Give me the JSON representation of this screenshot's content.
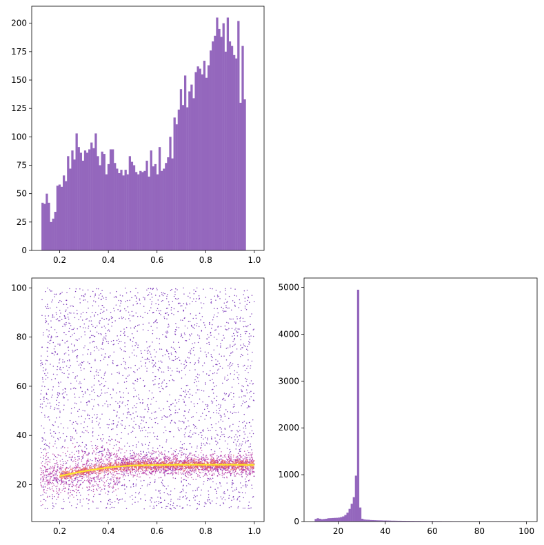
{
  "chart_data": [
    {
      "type": "bar",
      "panel": "top-left",
      "xlim": [
        0.085,
        1.04
      ],
      "ylim": [
        0,
        215
      ],
      "xticks": [
        0.2,
        0.4,
        0.6,
        0.8,
        1.0
      ],
      "xtick_labels": [
        "0.2",
        "0.4",
        "0.6",
        "0.8",
        "1.0"
      ],
      "yticks": [
        0,
        25,
        50,
        75,
        100,
        125,
        150,
        175,
        200
      ],
      "ytick_labels": [
        "0",
        "25",
        "50",
        "75",
        "100",
        "125",
        "150",
        "175",
        "200"
      ],
      "bin_start": 0.125,
      "bin_width": 0.00875,
      "values": [
        42,
        41,
        50,
        42,
        25,
        28,
        34,
        57,
        58,
        56,
        66,
        61,
        83,
        72,
        88,
        80,
        103,
        91,
        86,
        79,
        88,
        86,
        89,
        95,
        90,
        103,
        83,
        75,
        87,
        85,
        67,
        76,
        89,
        89,
        77,
        72,
        68,
        71,
        66,
        71,
        67,
        83,
        78,
        75,
        69,
        67,
        70,
        69,
        70,
        79,
        65,
        88,
        74,
        76,
        67,
        91,
        70,
        72,
        77,
        82,
        100,
        81,
        117,
        111,
        124,
        142,
        128,
        154,
        126,
        140,
        146,
        134,
        157,
        162,
        160,
        155,
        167,
        152,
        163,
        176,
        184,
        189,
        205,
        195,
        188,
        200,
        175,
        205,
        184,
        180,
        172,
        169,
        202,
        130,
        180,
        133
      ]
    },
    {
      "type": "scatter",
      "panel": "bottom-left",
      "xlim": [
        0.085,
        1.04
      ],
      "ylim": [
        5,
        104
      ],
      "xticks": [
        0.2,
        0.4,
        0.6,
        0.8,
        1.0
      ],
      "xtick_labels": [
        "0.2",
        "0.4",
        "0.6",
        "0.8",
        "1.0"
      ],
      "yticks": [
        20,
        40,
        60,
        80,
        100
      ],
      "ytick_labels": [
        "20",
        "40",
        "60",
        "80",
        "100"
      ],
      "x_range": [
        0.12,
        1.0
      ],
      "y_range": [
        10,
        100
      ],
      "trend_curve": {
        "x": [
          0.2,
          0.3,
          0.4,
          0.5,
          0.6,
          0.7,
          0.8,
          0.9,
          1.0
        ],
        "y": [
          23.5,
          25.5,
          27,
          27.8,
          28,
          28.1,
          28.1,
          28.1,
          28
        ]
      },
      "colors": {
        "sparse": "#6a1fb0",
        "mid": "#b0289e",
        "dense": "#e8615c",
        "trend": "#fde725"
      }
    },
    {
      "type": "bar",
      "panel": "bottom-right",
      "xlim": [
        5.5,
        104.5
      ],
      "ylim": [
        0,
        5200
      ],
      "xticks": [
        20,
        40,
        60,
        80,
        100
      ],
      "xtick_labels": [
        "20",
        "40",
        "60",
        "80",
        "100"
      ],
      "yticks": [
        0,
        1000,
        2000,
        3000,
        4000,
        5000
      ],
      "ytick_labels": [
        "0",
        "1000",
        "2000",
        "3000",
        "4000",
        "5000"
      ],
      "bin_start": 10,
      "bin_width": 0.9,
      "values": [
        55,
        70,
        60,
        50,
        55,
        60,
        70,
        72,
        75,
        78,
        80,
        85,
        95,
        110,
        140,
        190,
        270,
        380,
        520,
        980,
        4950,
        300,
        60,
        45,
        40,
        38,
        32,
        30,
        28,
        26,
        25,
        24,
        22,
        22,
        21,
        20,
        18,
        18,
        17,
        16,
        16,
        15,
        15,
        14,
        14,
        13,
        13,
        12,
        12,
        12,
        11,
        11,
        11,
        10,
        10,
        10,
        9,
        9,
        9,
        9,
        8,
        8,
        8,
        8,
        8,
        7,
        7,
        7,
        7,
        7,
        7,
        6,
        6,
        6,
        6,
        6,
        6,
        6,
        6,
        6,
        5,
        5,
        5,
        5,
        5,
        5,
        5,
        5,
        5,
        5,
        5,
        5,
        5,
        5,
        5,
        5,
        5,
        5,
        5,
        5
      ]
    }
  ],
  "colors": {
    "bar": "#9467bd"
  }
}
